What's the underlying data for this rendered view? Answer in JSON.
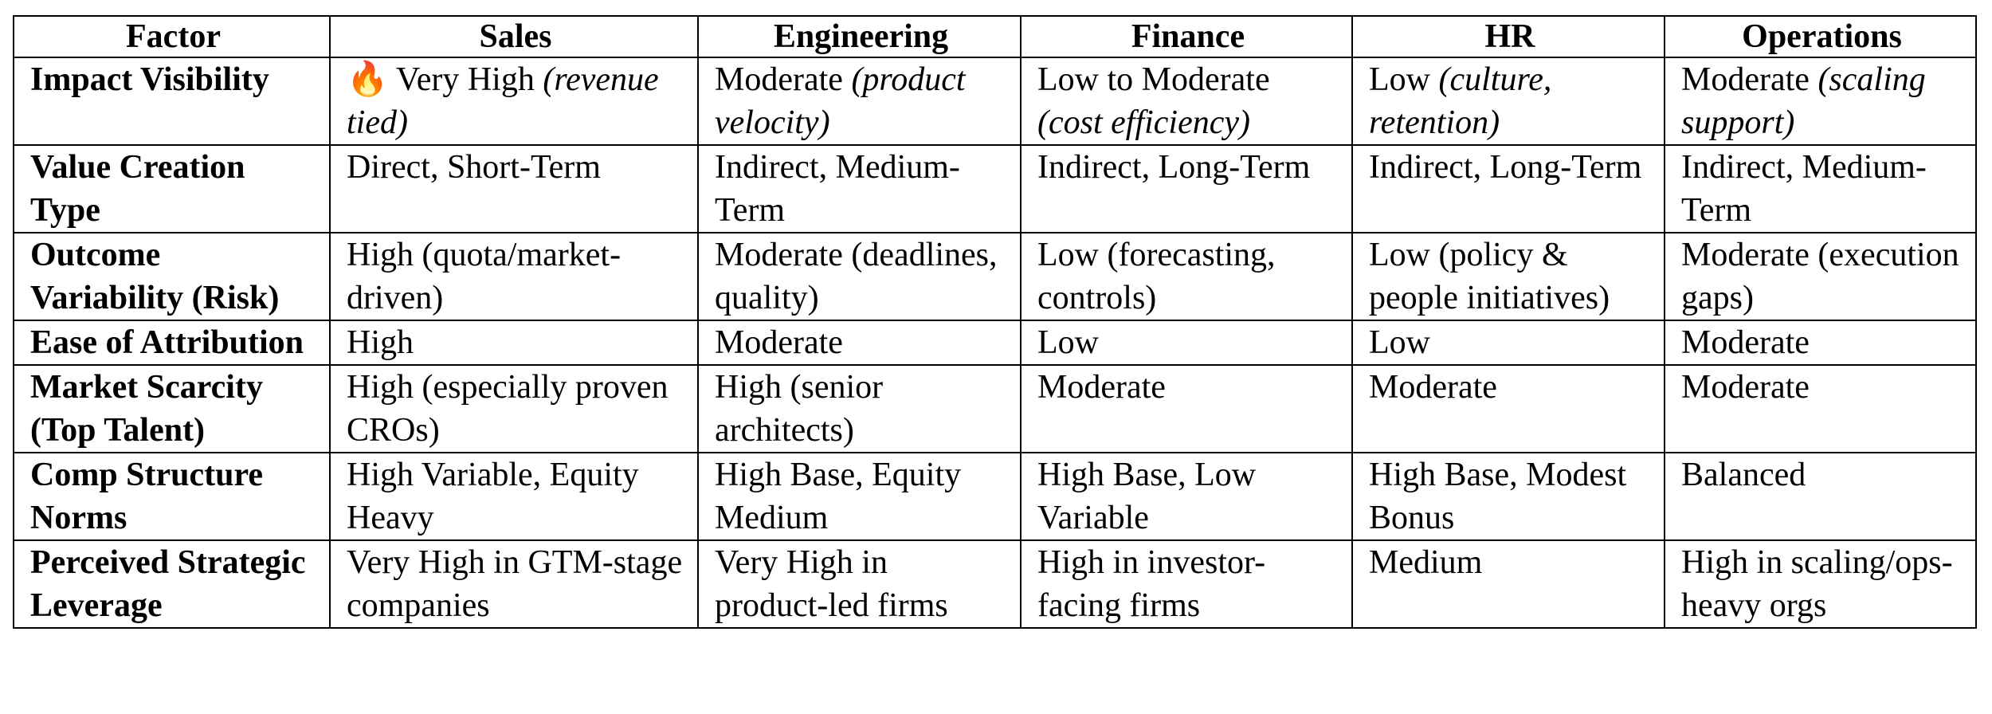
{
  "table": {
    "header": [
      "Factor",
      "Sales",
      "Engineering",
      "Finance",
      "HR",
      "Operations"
    ],
    "rows": [
      [
        "Impact Visibility",
        {
          "text": "🔥 Very High",
          "em": "(revenue tied)"
        },
        {
          "text": "Moderate",
          "em": "(product velocity)"
        },
        {
          "text": "Low to Moderate",
          "em": "(cost efficiency)"
        },
        {
          "text": "Low",
          "em": "(culture, retention)"
        },
        {
          "text": "Moderate",
          "em": "(scaling support)"
        }
      ],
      [
        "Value Creation Type",
        "Direct, Short-Term",
        "Indirect, Medium-Term",
        "Indirect, Long-Term",
        "Indirect, Long-Term",
        "Indirect, Medium-Term"
      ],
      [
        "Outcome Variability (Risk)",
        "High (quota/market-driven)",
        "Moderate (deadlines, quality)",
        "Low (forecasting, controls)",
        "Low (policy & people initiatives)",
        "Moderate (execution gaps)"
      ],
      [
        "Ease of Attribution",
        "High",
        "Moderate",
        "Low",
        "Low",
        "Moderate"
      ],
      [
        "Market Scarcity (Top Talent)",
        "High (especially proven CROs)",
        "High (senior architects)",
        "Moderate",
        "Moderate",
        "Moderate"
      ],
      [
        "Comp Structure Norms",
        "High Variable, Equity Heavy",
        "High Base, Equity Medium",
        "High Base, Low Variable",
        "High Base, Modest Bonus",
        "Balanced"
      ],
      [
        "Perceived Strategic Leverage",
        "Very High in GTM-stage companies",
        "Very High in product-led firms",
        "High in investor-facing firms",
        "Medium",
        "High in scaling/ops-heavy orgs"
      ]
    ]
  }
}
